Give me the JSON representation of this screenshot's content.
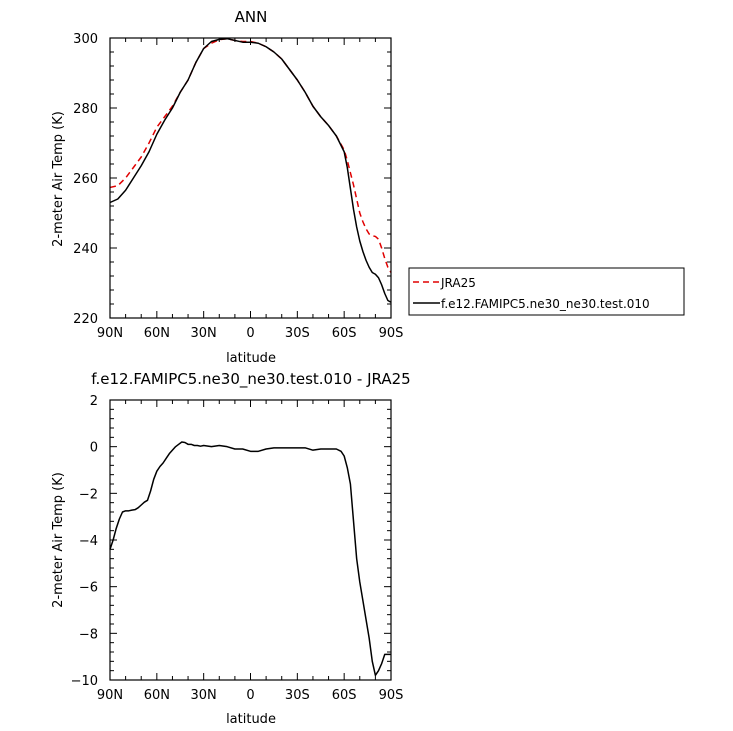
{
  "chart_data": [
    {
      "type": "line",
      "title": "ANN",
      "xlabel": "latitude",
      "ylabel": "2-meter Air Temp (K)",
      "xlim": [
        90,
        -90
      ],
      "ylim": [
        220,
        300
      ],
      "x_tick_values": [
        90,
        60,
        30,
        0,
        -30,
        -60,
        -90
      ],
      "x_tick_labels": [
        "90N",
        "60N",
        "30N",
        "0",
        "30S",
        "60S",
        "90S"
      ],
      "y_tick_values": [
        220,
        240,
        260,
        280,
        300
      ],
      "y_tick_labels": [
        "220",
        "240",
        "260",
        "280",
        "300"
      ],
      "legend_position": "right",
      "series": [
        {
          "name": "JRA25",
          "color": "#e00000",
          "dash": "dashed",
          "x": [
            90,
            85,
            80,
            75,
            70,
            65,
            60,
            55,
            50,
            45,
            40,
            35,
            30,
            25,
            20,
            15,
            10,
            5,
            0,
            -5,
            -10,
            -15,
            -20,
            -25,
            -30,
            -35,
            -40,
            -45,
            -50,
            -55,
            -60,
            -62,
            -64,
            -66,
            -68,
            -70,
            -72,
            -74,
            -76,
            -78,
            -80,
            -82,
            -84,
            -86,
            -88,
            -90
          ],
          "y": [
            257.3,
            257.8,
            260.0,
            263.0,
            266.0,
            270.0,
            274.5,
            277.5,
            280.5,
            284.5,
            288.0,
            293.0,
            297.0,
            298.5,
            299.5,
            299.8,
            299.3,
            299.0,
            299.0,
            298.5,
            297.5,
            296.0,
            294.0,
            291.0,
            288.0,
            284.5,
            280.5,
            277.5,
            275.0,
            272.0,
            268.0,
            265.0,
            261.5,
            258.0,
            254.0,
            250.0,
            247.5,
            245.5,
            244.0,
            243.5,
            243.3,
            242.5,
            240.0,
            237.0,
            234.5,
            233.0
          ]
        },
        {
          "name": "f.e12.FAMIPC5.ne30_ne30.test.010",
          "color": "#000000",
          "dash": "solid",
          "x": [
            90,
            85,
            80,
            75,
            70,
            65,
            60,
            55,
            50,
            45,
            40,
            35,
            30,
            25,
            20,
            15,
            10,
            5,
            0,
            -5,
            -10,
            -15,
            -20,
            -25,
            -30,
            -35,
            -40,
            -45,
            -50,
            -55,
            -60,
            -62,
            -64,
            -66,
            -68,
            -70,
            -72,
            -74,
            -76,
            -78,
            -80,
            -82,
            -84,
            -86,
            -88,
            -90
          ],
          "y": [
            253.0,
            254.0,
            256.5,
            260.0,
            263.5,
            267.5,
            272.5,
            276.5,
            280.0,
            284.5,
            288.0,
            293.0,
            297.0,
            299.0,
            299.6,
            299.8,
            299.3,
            298.8,
            298.8,
            298.5,
            297.5,
            296.0,
            294.0,
            291.0,
            288.0,
            284.5,
            280.5,
            277.5,
            275.0,
            272.0,
            267.5,
            263.0,
            257.0,
            251.0,
            246.0,
            242.0,
            239.0,
            236.5,
            234.5,
            233.0,
            232.5,
            231.5,
            229.5,
            227.0,
            225.0,
            224.5
          ]
        }
      ]
    },
    {
      "type": "line",
      "title": "f.e12.FAMIPC5.ne30_ne30.test.010 - JRA25",
      "xlabel": "latitude",
      "ylabel": "2-meter Air Temp (K)",
      "xlim": [
        90,
        -90
      ],
      "ylim": [
        -10,
        2
      ],
      "x_tick_values": [
        90,
        60,
        30,
        0,
        -30,
        -60,
        -90
      ],
      "x_tick_labels": [
        "90N",
        "60N",
        "30N",
        "0",
        "30S",
        "60S",
        "90S"
      ],
      "y_tick_values": [
        -10,
        -8,
        -6,
        -4,
        -2,
        0,
        2
      ],
      "y_tick_labels": [
        "−10",
        "−8",
        "−6",
        "−4",
        "−2",
        "0",
        "2"
      ],
      "series": [
        {
          "color": "#000000",
          "dash": "solid",
          "x": [
            90,
            88,
            86,
            84,
            82,
            80,
            78,
            76,
            74,
            72,
            70,
            68,
            66,
            64,
            62,
            60,
            58,
            56,
            54,
            52,
            50,
            48,
            46,
            44,
            42,
            40,
            38,
            36,
            34,
            32,
            30,
            25,
            20,
            15,
            10,
            5,
            0,
            -5,
            -10,
            -15,
            -20,
            -25,
            -30,
            -35,
            -40,
            -45,
            -50,
            -55,
            -58,
            -60,
            -62,
            -64,
            -66,
            -68,
            -70,
            -72,
            -74,
            -76,
            -78,
            -80,
            -82,
            -84,
            -86,
            -88,
            -90
          ],
          "y": [
            -4.4,
            -4.0,
            -3.5,
            -3.1,
            -2.8,
            -2.75,
            -2.75,
            -2.72,
            -2.7,
            -2.62,
            -2.5,
            -2.38,
            -2.3,
            -1.9,
            -1.4,
            -1.05,
            -0.85,
            -0.7,
            -0.5,
            -0.3,
            -0.15,
            0.0,
            0.1,
            0.2,
            0.18,
            0.1,
            0.1,
            0.05,
            0.05,
            0.02,
            0.05,
            0.0,
            0.05,
            0.0,
            -0.1,
            -0.1,
            -0.2,
            -0.2,
            -0.1,
            -0.05,
            -0.05,
            -0.05,
            -0.05,
            -0.05,
            -0.15,
            -0.1,
            -0.1,
            -0.1,
            -0.2,
            -0.4,
            -0.9,
            -1.6,
            -3.2,
            -4.8,
            -5.8,
            -6.6,
            -7.4,
            -8.2,
            -9.2,
            -9.8,
            -9.6,
            -9.3,
            -8.9,
            -8.9,
            -8.9
          ]
        }
      ]
    }
  ]
}
